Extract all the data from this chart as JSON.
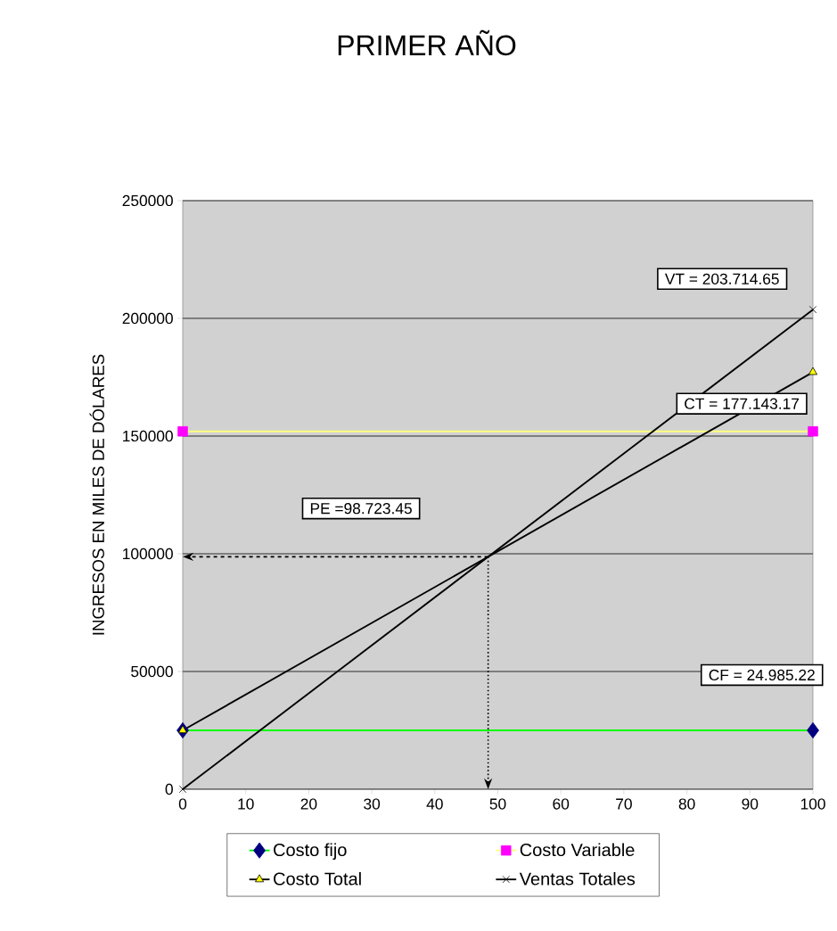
{
  "chart_data": {
    "type": "line",
    "title": "PRIMER AÑO",
    "ylabel": "INGRESOS  EN MILES DE DÓLARES",
    "x": [
      0,
      100
    ],
    "series": [
      {
        "name": "Costo fijo",
        "color": "#00ff00",
        "colors": [
          "#000080",
          "#000080"
        ],
        "marker": "diamond",
        "values": [
          24985.22,
          24985.22
        ]
      },
      {
        "name": "Costo Variable",
        "color": "#ffff80",
        "colors": [
          "#ff00ff",
          "#ff00ff"
        ],
        "marker": "square",
        "values": [
          152000,
          152000
        ]
      },
      {
        "name": "Costo Total",
        "color": "#000000",
        "colors": [
          "#ffff00",
          "#ffff00"
        ],
        "marker": "triangle",
        "values": [
          24985.22,
          177143.17
        ]
      },
      {
        "name": "Ventas Totales",
        "color": "#000000",
        "colors": [
          "#000000",
          "#000000"
        ],
        "marker": "cross",
        "values": [
          0,
          203714.65
        ]
      }
    ],
    "xlim": [
      0,
      100
    ],
    "xticks": [
      0,
      10,
      20,
      30,
      40,
      50,
      60,
      70,
      80,
      90,
      100
    ],
    "ylim": [
      0,
      250000
    ],
    "yticks": [
      0,
      50000,
      100000,
      150000,
      200000,
      250000
    ],
    "grid": "y",
    "legend": "bottom",
    "annotations": [
      "VT = 203.714.65",
      "CT = 177.143.17",
      "CF = 24.985.22",
      "PE =98.723.45"
    ]
  }
}
